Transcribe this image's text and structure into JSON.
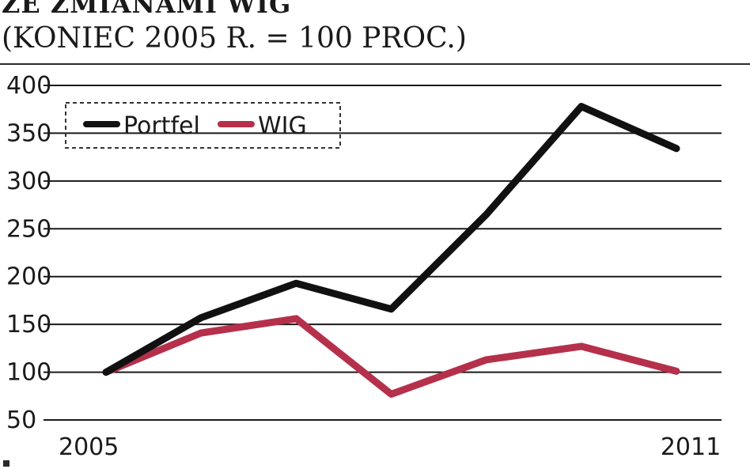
{
  "header": {
    "title_line1": "ZE ZMIANAMI WIG",
    "title_line2": "(KONIEC 2005 R. = 100 PROC.)"
  },
  "chart_data": {
    "type": "line",
    "x": [
      2005,
      2006,
      2007,
      2008,
      2009,
      2010,
      2011
    ],
    "x_tick_labels": [
      "2005",
      "2011"
    ],
    "x_tick_values": [
      2005,
      2011
    ],
    "series": [
      {
        "name": "Portfel",
        "color": "#111111",
        "values": [
          100,
          157,
          193,
          166,
          265,
          378,
          334
        ]
      },
      {
        "name": "WIG",
        "color": "#b5304b",
        "values": [
          100,
          141,
          156,
          77,
          113,
          127,
          101
        ]
      }
    ],
    "yticks": [
      50,
      100,
      150,
      200,
      250,
      300,
      350,
      400
    ],
    "ylim": [
      50,
      400
    ],
    "grid": true,
    "legend_position": "top-left"
  },
  "colors": {
    "portfel": "#111111",
    "wig": "#b5304b",
    "grid": "#1a1a1a"
  }
}
